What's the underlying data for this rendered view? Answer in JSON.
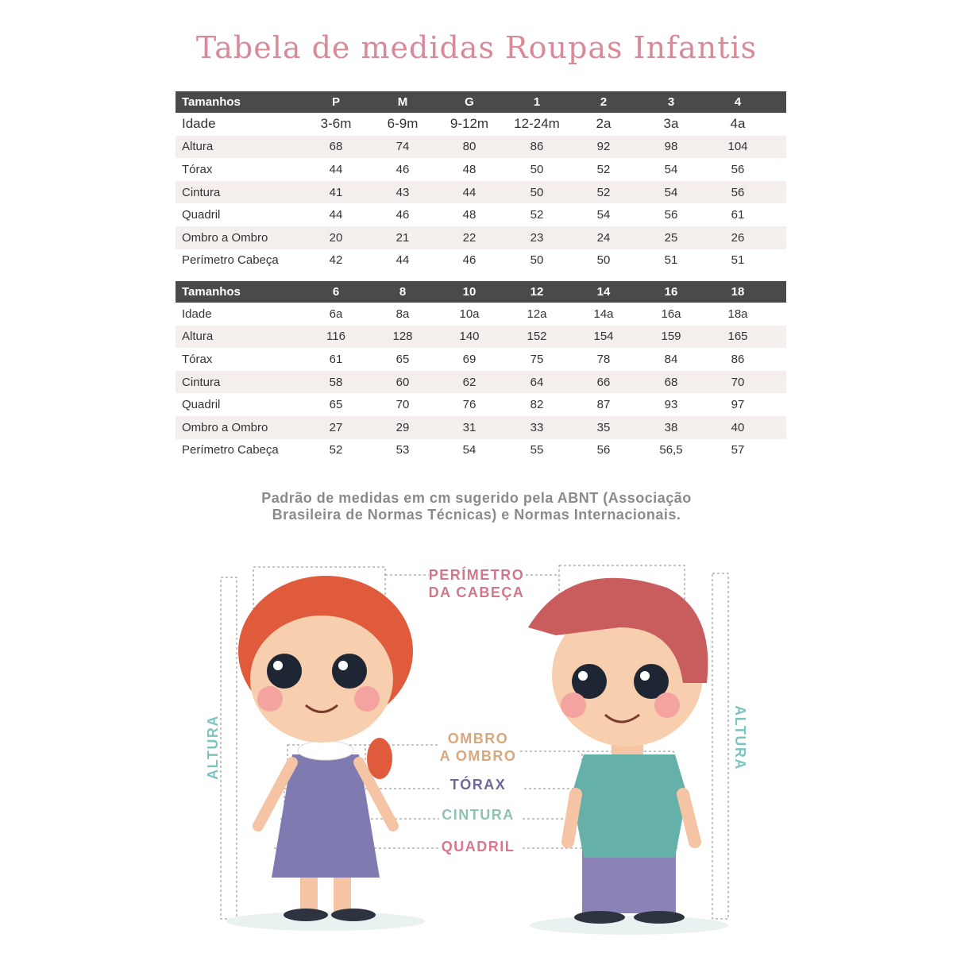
{
  "title": "Tabela de medidas Roupas Infantis",
  "tables": [
    {
      "header_label": "Tamanhos",
      "sizes": [
        "P",
        "M",
        "G",
        "1",
        "2",
        "3",
        "4"
      ],
      "rows": [
        {
          "label": "Idade",
          "values": [
            "3-6m",
            "6-9m",
            "9-12m",
            "12-24m",
            "2a",
            "3a",
            "4a"
          ]
        },
        {
          "label": "Altura",
          "values": [
            "68",
            "74",
            "80",
            "86",
            "92",
            "98",
            "104"
          ]
        },
        {
          "label": "Tórax",
          "values": [
            "44",
            "46",
            "48",
            "50",
            "52",
            "54",
            "56"
          ]
        },
        {
          "label": "Cintura",
          "values": [
            "41",
            "43",
            "44",
            "50",
            "52",
            "54",
            "56"
          ]
        },
        {
          "label": "Quadril",
          "values": [
            "44",
            "46",
            "48",
            "52",
            "54",
            "56",
            "61"
          ]
        },
        {
          "label": "Ombro a Ombro",
          "values": [
            "20",
            "21",
            "22",
            "23",
            "24",
            "25",
            "26"
          ]
        },
        {
          "label": "Perímetro Cabeça",
          "values": [
            "42",
            "44",
            "46",
            "50",
            "50",
            "51",
            "51"
          ]
        }
      ]
    },
    {
      "header_label": "Tamanhos",
      "sizes": [
        "6",
        "8",
        "10",
        "12",
        "14",
        "16",
        "18"
      ],
      "rows": [
        {
          "label": "Idade",
          "values": [
            "6a",
            "8a",
            "10a",
            "12a",
            "14a",
            "16a",
            "18a"
          ]
        },
        {
          "label": "Altura",
          "values": [
            "116",
            "128",
            "140",
            "152",
            "154",
            "159",
            "165"
          ]
        },
        {
          "label": "Tórax",
          "values": [
            "61",
            "65",
            "69",
            "75",
            "78",
            "84",
            "86"
          ]
        },
        {
          "label": "Cintura",
          "values": [
            "58",
            "60",
            "62",
            "64",
            "66",
            "68",
            "70"
          ]
        },
        {
          "label": "Quadril",
          "values": [
            "65",
            "70",
            "76",
            "82",
            "87",
            "93",
            "97"
          ]
        },
        {
          "label": "Ombro a Ombro",
          "values": [
            "27",
            "29",
            "31",
            "33",
            "35",
            "38",
            "40"
          ]
        },
        {
          "label": "Perímetro Cabeça",
          "values": [
            "52",
            "53",
            "54",
            "55",
            "56",
            "56,5",
            "57"
          ]
        }
      ]
    }
  ],
  "note": {
    "line1": "Padrão de medidas em cm sugerido pela ABNT (Associação",
    "line2": "Brasileira de Normas Técnicas) e Normas Internacionais."
  },
  "illustration": {
    "head_line1": "PERÍMETRO",
    "head_line2": "DA CABEÇA",
    "shoulder_line1": "OMBRO",
    "shoulder_line2": "A OMBRO",
    "chest": "TÓRAX",
    "waist": "CINTURA",
    "hip": "QUADRIL",
    "height_left": "ALTURA",
    "height_right": "ALTURA"
  },
  "colors": {
    "title": "#d98a99",
    "header_bg": "#4a4a4a",
    "stripe": "#f4efec",
    "head_label": "#d0788a",
    "shoulder_label": "#d9a77c",
    "chest_label": "#6e6a98",
    "waist_label": "#8fc2b6",
    "hip_label": "#d9778c",
    "height_label": "#7cc4c0"
  }
}
